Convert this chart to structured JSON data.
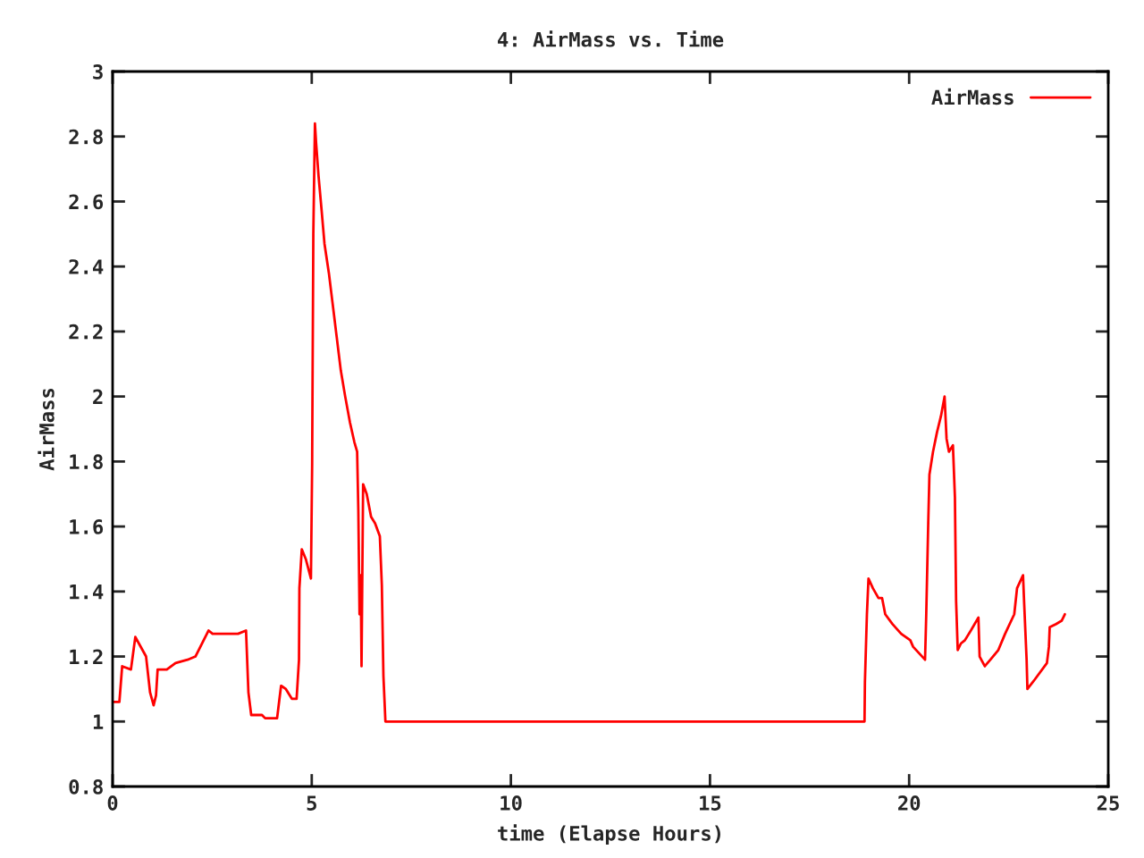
{
  "chart_data": {
    "type": "line",
    "title": "4: AirMass vs. Time",
    "xlabel": "time (Elapse Hours)",
    "ylabel": "AirMass",
    "xlim": [
      0,
      25
    ],
    "xticks": [
      0,
      5,
      10,
      15,
      20,
      25
    ],
    "ylim": [
      0.8,
      3
    ],
    "yticks": [
      0.8,
      1,
      1.2,
      1.4,
      1.6,
      1.8,
      2,
      2.2,
      2.4,
      2.6,
      2.8,
      3
    ],
    "grid": false,
    "legend": "top right",
    "line_style": "solid",
    "series": [
      {
        "name": "AirMass",
        "color": "#ff0000",
        "x": [
          0,
          0.17,
          0.24,
          0.46,
          0.57,
          0.84,
          0.94,
          1.03,
          1.09,
          1.13,
          1.36,
          1.58,
          1.88,
          2.08,
          2.41,
          2.51,
          3.15,
          3.35,
          3.41,
          3.48,
          3.75,
          3.83,
          4.13,
          4.23,
          4.35,
          4.5,
          4.62,
          4.68,
          4.69,
          4.75,
          4.85,
          4.98,
          5.01,
          5.04,
          5.08,
          5.11,
          5.17,
          5.25,
          5.32,
          5.43,
          5.52,
          5.62,
          5.73,
          5.84,
          5.96,
          6.07,
          6.14,
          6.17,
          6.2,
          6.23,
          6.25,
          6.29,
          6.38,
          6.49,
          6.59,
          6.71,
          6.76,
          6.8,
          6.85,
          18.88,
          18.89,
          18.94,
          18.98,
          19.09,
          19.23,
          19.32,
          19.4,
          19.58,
          19.8,
          20.03,
          20.1,
          20.4,
          20.43,
          20.48,
          20.51,
          20.6,
          20.7,
          20.8,
          20.89,
          20.94,
          21.0,
          21.1,
          21.15,
          21.18,
          21.22,
          21.3,
          21.4,
          21.55,
          21.74,
          21.77,
          21.9,
          22.04,
          22.24,
          22.41,
          22.64,
          22.71,
          22.86,
          22.89,
          22.95,
          22.97,
          23.16,
          23.46,
          23.51,
          23.53,
          23.69,
          23.83,
          23.91
        ],
        "values": [
          1.06,
          1.06,
          1.17,
          1.16,
          1.26,
          1.2,
          1.09,
          1.05,
          1.08,
          1.16,
          1.16,
          1.18,
          1.19,
          1.2,
          1.28,
          1.27,
          1.27,
          1.28,
          1.09,
          1.02,
          1.02,
          1.01,
          1.01,
          1.11,
          1.1,
          1.07,
          1.07,
          1.19,
          1.41,
          1.53,
          1.5,
          1.44,
          1.79,
          2.5,
          2.84,
          2.78,
          2.68,
          2.57,
          2.47,
          2.38,
          2.29,
          2.19,
          2.08,
          2.0,
          1.92,
          1.86,
          1.83,
          1.65,
          1.33,
          1.45,
          1.17,
          1.73,
          1.7,
          1.63,
          1.61,
          1.57,
          1.42,
          1.14,
          1.0,
          1.0,
          1.12,
          1.33,
          1.44,
          1.41,
          1.38,
          1.38,
          1.33,
          1.3,
          1.27,
          1.25,
          1.23,
          1.19,
          1.33,
          1.61,
          1.76,
          1.83,
          1.89,
          1.94,
          2.0,
          1.87,
          1.83,
          1.85,
          1.69,
          1.37,
          1.22,
          1.24,
          1.25,
          1.28,
          1.32,
          1.2,
          1.17,
          1.19,
          1.22,
          1.27,
          1.33,
          1.41,
          1.45,
          1.36,
          1.19,
          1.1,
          1.13,
          1.18,
          1.23,
          1.29,
          1.3,
          1.31,
          1.33
        ]
      }
    ]
  }
}
